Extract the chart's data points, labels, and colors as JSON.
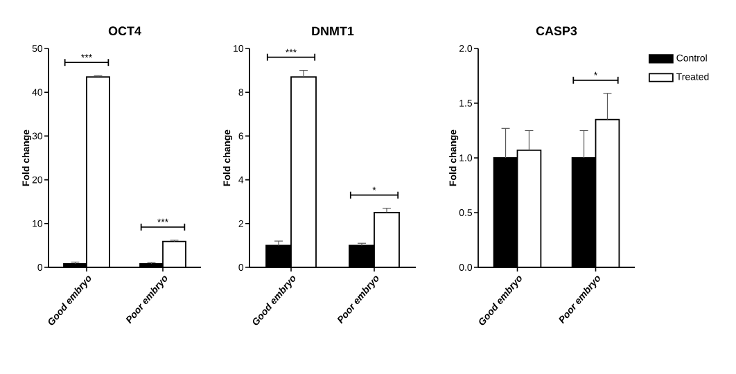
{
  "chart_data": [
    {
      "type": "bar",
      "title": "OCT4",
      "ylabel": "Fold change",
      "categories": [
        "Good embryo",
        "Poor embryo"
      ],
      "series": [
        {
          "color": "#000000",
          "values": [
            0.8,
            0.8
          ],
          "errors": [
            0.4,
            0.3
          ]
        },
        {
          "color": "#ffffff",
          "values": [
            43.5,
            5.9
          ],
          "errors": [
            0.3,
            0.3
          ]
        }
      ],
      "ylim": [
        0,
        50
      ],
      "yticks": [
        0,
        10,
        20,
        30,
        40,
        50
      ],
      "annotations": [
        "***",
        "***"
      ]
    },
    {
      "type": "bar",
      "title": "DNMT1",
      "ylabel": "Fold change",
      "categories": [
        "Good embryo",
        "Poor embryo"
      ],
      "series": [
        {
          "color": "#000000",
          "values": [
            1.0,
            1.0
          ],
          "errors": [
            0.2,
            0.1
          ]
        },
        {
          "color": "#ffffff",
          "values": [
            8.7,
            2.5
          ],
          "errors": [
            0.3,
            0.2
          ]
        }
      ],
      "ylim": [
        0,
        10
      ],
      "yticks": [
        0,
        2,
        4,
        6,
        8,
        10
      ],
      "annotations": [
        "***",
        "*"
      ]
    },
    {
      "type": "bar",
      "title": "CASP3",
      "ylabel": "Fold change",
      "categories": [
        "Good embryo",
        "Poor embryo"
      ],
      "series": [
        {
          "name": "Control",
          "color": "#000000",
          "values": [
            1.0,
            1.0
          ],
          "errors": [
            0.27,
            0.25
          ]
        },
        {
          "name": "Treated",
          "color": "#ffffff",
          "values": [
            1.07,
            1.35
          ],
          "errors": [
            0.18,
            0.24
          ]
        }
      ],
      "ylim": [
        0,
        2
      ],
      "yticks": [
        {
          "value": 0,
          "label": "0.0"
        },
        {
          "value": 0.5,
          "label": "0.5"
        },
        {
          "value": 1,
          "label": "1.0"
        },
        {
          "value": 1.5,
          "label": "1.5"
        },
        {
          "value": 2,
          "label": "2.0"
        }
      ],
      "legend": "top right",
      "annotations": [
        "*"
      ]
    }
  ]
}
